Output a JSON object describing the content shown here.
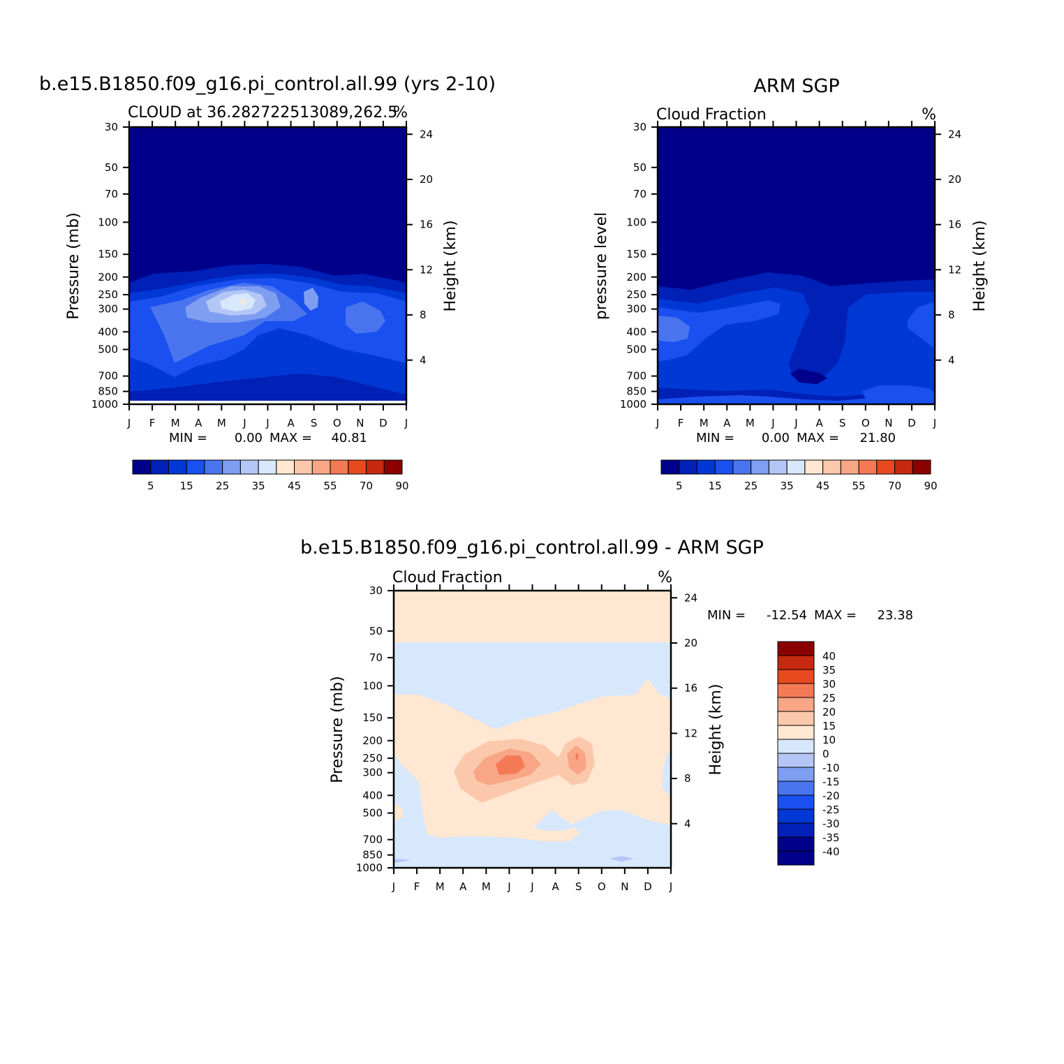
{
  "colors": {
    "cloud_palette": [
      "#00008a",
      "#0020b6",
      "#0038d6",
      "#1a4ff0",
      "#4a74ee",
      "#7e9ef2",
      "#b4c6f6",
      "#d8e8fc",
      "#ffe7d1",
      "#fbc8ac",
      "#f8a686",
      "#f47a56",
      "#e8491e",
      "#c62810",
      "#8b0000"
    ],
    "diff_palette": [
      "#00008a",
      "#0020b6",
      "#0038d6",
      "#1a4ff0",
      "#4a74ee",
      "#7e9ef2",
      "#b4c6f6",
      "#d8e8fc",
      "#ffe7d1",
      "#fbc8ac",
      "#f8a686",
      "#f47a56",
      "#e8491e",
      "#c62810",
      "#8b0000"
    ]
  },
  "chart_data": [
    {
      "type": "heatmap",
      "title": "b.e15.B1850.f09_g16.pi_control.all.99 (yrs 2-10)",
      "subtitle": "CLOUD at 36.282722513089,262.5",
      "units": "%",
      "ylabel": "Pressure (mb)",
      "ylabel_right": "Height (km)",
      "x_ticks": [
        "J",
        "F",
        "M",
        "A",
        "M",
        "J",
        "J",
        "A",
        "S",
        "O",
        "N",
        "D",
        "J"
      ],
      "y_ticks": [
        "30",
        "50",
        "70",
        "100",
        "150",
        "200",
        "250",
        "300",
        "400",
        "500",
        "700",
        "850",
        "1000"
      ],
      "y_right_ticks": [
        "24",
        "20",
        "16",
        "12",
        "8",
        "4"
      ],
      "min_label": "MIN =",
      "min_value": "0.00",
      "max_label": "MAX =",
      "max_value": "40.81",
      "colorbar_labels": [
        "5",
        "15",
        "25",
        "35",
        "45",
        "55",
        "70",
        "90"
      ],
      "colorbar_levels": [
        5,
        10,
        15,
        20,
        25,
        30,
        35,
        40,
        45,
        50,
        55,
        60,
        70,
        80,
        90
      ]
    },
    {
      "type": "heatmap",
      "title": "ARM SGP",
      "subtitle": "Cloud Fraction",
      "units": "%",
      "ylabel": "pressure level",
      "ylabel_right": "Height (km)",
      "x_ticks": [
        "J",
        "F",
        "M",
        "A",
        "M",
        "J",
        "J",
        "A",
        "S",
        "O",
        "N",
        "D",
        "J"
      ],
      "y_ticks": [
        "30",
        "50",
        "70",
        "100",
        "150",
        "200",
        "250",
        "300",
        "400",
        "500",
        "700",
        "850",
        "1000"
      ],
      "y_right_ticks": [
        "24",
        "20",
        "16",
        "12",
        "8",
        "4"
      ],
      "min_label": "MIN =",
      "min_value": "0.00",
      "max_label": "MAX =",
      "max_value": "21.80",
      "colorbar_labels": [
        "5",
        "15",
        "25",
        "35",
        "45",
        "55",
        "70",
        "90"
      ],
      "colorbar_levels": [
        5,
        10,
        15,
        20,
        25,
        30,
        35,
        40,
        45,
        50,
        55,
        60,
        70,
        80,
        90
      ]
    },
    {
      "type": "heatmap",
      "title": "b.e15.B1850.f09_g16.pi_control.all.99 - ARM SGP",
      "subtitle": "Cloud Fraction",
      "units": "%",
      "ylabel": "Pressure (mb)",
      "ylabel_right": "Height (km)",
      "x_ticks": [
        "J",
        "F",
        "M",
        "A",
        "M",
        "J",
        "J",
        "A",
        "S",
        "O",
        "N",
        "D",
        "J"
      ],
      "y_ticks": [
        "30",
        "50",
        "70",
        "100",
        "150",
        "200",
        "250",
        "300",
        "400",
        "500",
        "700",
        "850",
        "1000"
      ],
      "y_right_ticks": [
        "24",
        "20",
        "16",
        "12",
        "8",
        "4"
      ],
      "min_label": "MIN =",
      "min_value": "-12.54",
      "max_label": "MAX =",
      "max_value": "23.38",
      "colorbar_labels": [
        "40",
        "35",
        "30",
        "25",
        "20",
        "15",
        "10",
        "0",
        "-10",
        "-15",
        "-20",
        "-25",
        "-30",
        "-35",
        "-40"
      ]
    }
  ]
}
